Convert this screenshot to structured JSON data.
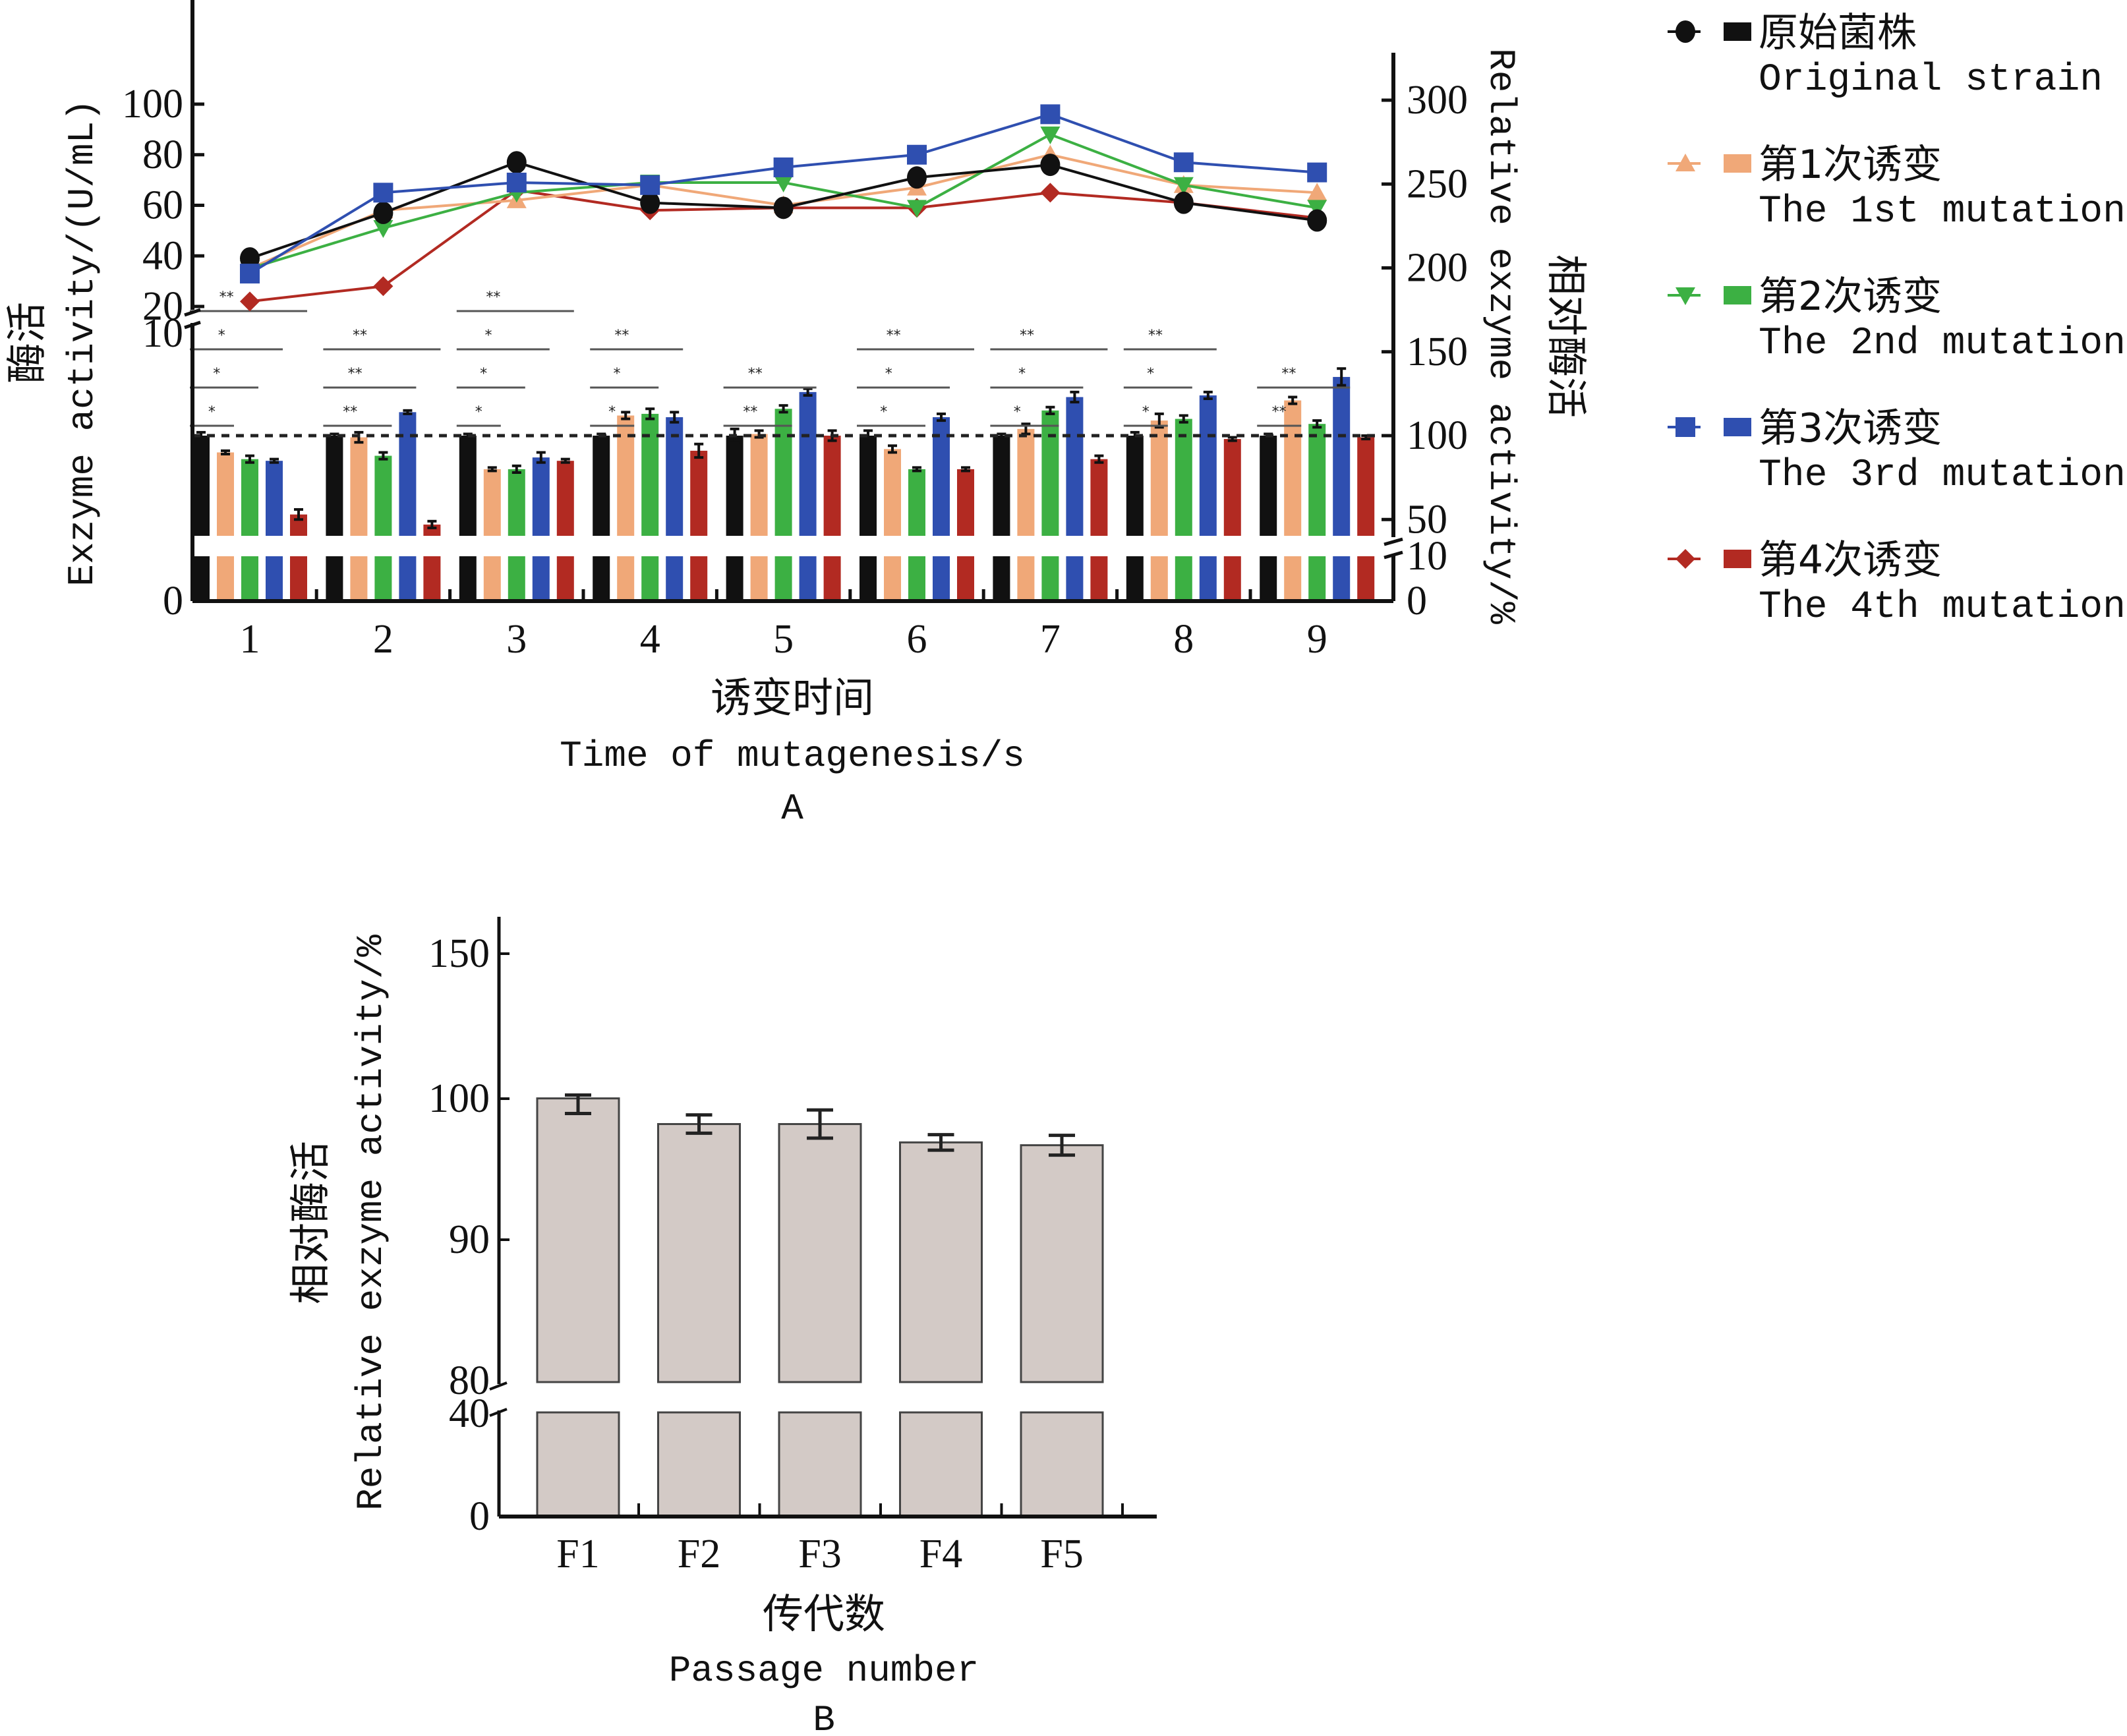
{
  "chart_data": [
    {
      "panel": "A",
      "type": "bar+line",
      "title": "",
      "panel_label": "A",
      "xlabel_cn": "诱变时间",
      "xlabel": "Time of mutagenesis/s",
      "ylabel_left_cn": "酶活",
      "ylabel_left": "Exzyme activity/(U/mL)",
      "ylabel_right_cn": "相对酶活",
      "ylabel_right": "Relative exzyme activity/%",
      "categories": [
        "1",
        "2",
        "3",
        "4",
        "5",
        "6",
        "7",
        "8",
        "9"
      ],
      "left_axis": {
        "ticks": [
          "0",
          "10",
          "20",
          "40",
          "60",
          "80",
          "100"
        ],
        "broken": true,
        "lower_range": [
          0,
          10
        ],
        "upper_range": [
          20,
          100
        ]
      },
      "right_axis": {
        "ticks": [
          "0",
          "10",
          "50",
          "100",
          "150",
          "200",
          "250",
          "300"
        ],
        "broken": true,
        "lower_range": [
          0,
          10
        ],
        "upper_range": [
          50,
          300
        ]
      },
      "reference_line": {
        "axis": "right",
        "value": 100,
        "style": "dashed"
      },
      "line_series": [
        {
          "name": "原始菌株 Original strain",
          "marker": "circle",
          "color": "#111111",
          "values": [
            39,
            57,
            77,
            61,
            59,
            71,
            76,
            61,
            54
          ]
        },
        {
          "name": "第1次诱变 The 1st mutation",
          "marker": "triangle-up",
          "color": "#f0a878",
          "values": [
            35,
            58,
            62,
            68,
            60,
            67,
            80,
            68,
            65
          ]
        },
        {
          "name": "第2次诱变 The 2nd mutation",
          "marker": "triangle-down",
          "color": "#3cb043",
          "values": [
            35,
            51,
            65,
            69,
            69,
            59,
            88,
            68,
            59
          ]
        },
        {
          "name": "第3次诱变 The 3rd mutation",
          "marker": "square",
          "color": "#2f4fb0",
          "values": [
            33,
            65,
            69,
            68,
            75,
            80,
            96,
            77,
            73
          ]
        },
        {
          "name": "第4次诱变 The 4th mutation",
          "marker": "diamond",
          "color": "#b22a22",
          "values": [
            22,
            28,
            66,
            58,
            59,
            59,
            65,
            61,
            55
          ]
        }
      ],
      "bar_series": [
        {
          "name": "原始菌株 Original strain",
          "color": "#111111",
          "values": [
            100,
            100,
            100,
            100,
            100,
            100,
            100,
            100,
            100
          ],
          "errors": [
            2,
            1,
            1,
            1,
            4,
            3,
            1,
            2,
            1
          ]
        },
        {
          "name": "第1次诱变 The 1st mutation",
          "color": "#f0a878",
          "values": [
            90,
            99,
            80,
            112,
            101,
            92,
            104,
            109,
            121
          ],
          "errors": [
            1,
            3,
            1,
            2,
            2,
            2,
            3,
            4,
            2
          ]
        },
        {
          "name": "第2次诱变 The 2nd mutation",
          "color": "#3cb043",
          "values": [
            86,
            88,
            80,
            113,
            116,
            80,
            115,
            110,
            107
          ],
          "errors": [
            2,
            2,
            2,
            3,
            2,
            1,
            2,
            2,
            2
          ]
        },
        {
          "name": "第3次诱变 The 3rd mutation",
          "color": "#2f4fb0",
          "values": [
            85,
            114,
            87,
            111,
            126,
            111,
            123,
            124,
            135
          ],
          "errors": [
            1,
            1,
            3,
            3,
            2,
            2,
            3,
            2,
            5
          ]
        },
        {
          "name": "第4次诱变 The 4th mutation",
          "color": "#b22a22",
          "values": [
            53,
            47,
            85,
            91,
            100,
            80,
            86,
            98,
            99
          ],
          "errors": [
            3,
            2,
            1,
            4,
            3,
            1,
            2,
            1,
            1
          ]
        }
      ],
      "significance": [
        [
          {
            "from": 0,
            "to": 1,
            "label": "*"
          },
          {
            "from": 0,
            "to": 2,
            "label": "*"
          },
          {
            "from": 0,
            "to": 3,
            "label": "*"
          },
          {
            "from": 0,
            "to": 4,
            "label": "**"
          }
        ],
        [
          {
            "from": 0,
            "to": 2,
            "label": "**"
          },
          {
            "from": 0,
            "to": 3,
            "label": "**"
          },
          {
            "from": 0,
            "to": 4,
            "label": "**"
          }
        ],
        [
          {
            "from": 0,
            "to": 1,
            "label": "*"
          },
          {
            "from": 0,
            "to": 2,
            "label": "*"
          },
          {
            "from": 0,
            "to": 3,
            "label": "*"
          },
          {
            "from": 0,
            "to": 4,
            "label": "**"
          }
        ],
        [
          {
            "from": 0,
            "to": 1,
            "label": "*"
          },
          {
            "from": 0,
            "to": 2,
            "label": "*"
          },
          {
            "from": 0,
            "to": 3,
            "label": "**"
          }
        ],
        [
          {
            "from": 0,
            "to": 2,
            "label": "**"
          },
          {
            "from": 0,
            "to": 3,
            "label": "**"
          }
        ],
        [
          {
            "from": 0,
            "to": 2,
            "label": "*"
          },
          {
            "from": 0,
            "to": 3,
            "label": "*"
          },
          {
            "from": 0,
            "to": 4,
            "label": "**"
          }
        ],
        [
          {
            "from": 0,
            "to": 2,
            "label": "*"
          },
          {
            "from": 0,
            "to": 3,
            "label": "*"
          },
          {
            "from": 0,
            "to": 4,
            "label": "**"
          }
        ],
        [
          {
            "from": 0,
            "to": 1,
            "label": "*"
          },
          {
            "from": 0,
            "to": 2,
            "label": "*"
          },
          {
            "from": 0,
            "to": 3,
            "label": "**"
          }
        ],
        [
          {
            "from": 0,
            "to": 1,
            "label": "**"
          },
          {
            "from": 0,
            "to": 3,
            "label": "**"
          }
        ]
      ],
      "legend_position": "right",
      "legend": [
        {
          "cn": "原始菌株",
          "en": "Original strain",
          "marker": "circle",
          "color": "#111111"
        },
        {
          "cn": "第1次诱变",
          "en": "The 1st mutation",
          "marker": "triangle-up",
          "color": "#f0a878"
        },
        {
          "cn": "第2次诱变",
          "en": "The 2nd mutation",
          "marker": "triangle-down",
          "color": "#3cb043"
        },
        {
          "cn": "第3次诱变",
          "en": "The 3rd mutation",
          "marker": "square",
          "color": "#2f4fb0"
        },
        {
          "cn": "第4次诱变",
          "en": "The 4th mutation",
          "marker": "diamond",
          "color": "#b22a22"
        }
      ]
    },
    {
      "panel": "B",
      "type": "bar",
      "title": "",
      "panel_label": "B",
      "xlabel_cn": "传代数",
      "xlabel": "Passage number",
      "ylabel_cn": "相对酶活",
      "ylabel": "Relative exzyme activity/%",
      "categories": [
        "F1",
        "F2",
        "F3",
        "F4",
        "F5"
      ],
      "values": [
        100.1,
        98.2,
        98.2,
        96.9,
        96.7
      ],
      "errors": [
        1.15,
        0.65,
        1.0,
        0.55,
        0.7
      ],
      "color": "#d3cac6",
      "y_axis": {
        "ticks": [
          "0",
          "40",
          "80",
          "90",
          "100",
          "150"
        ],
        "broken": true,
        "lower_range": [
          0,
          40
        ],
        "upper_range": [
          80,
          150
        ]
      }
    }
  ]
}
